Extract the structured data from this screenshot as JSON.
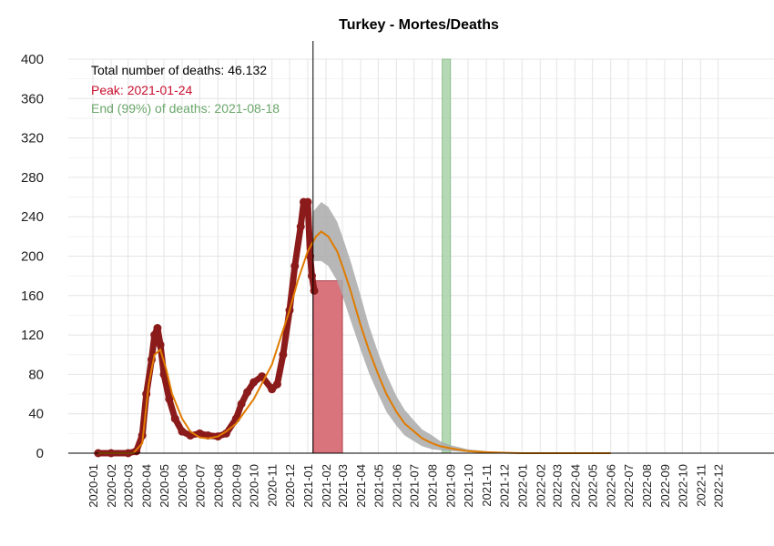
{
  "chart_data": {
    "type": "line",
    "title": "Turkey - Mortes/Deaths",
    "xlabel": "",
    "ylabel": "",
    "x_range": [
      "2020-01-01",
      "2022-12-31"
    ],
    "ylim": [
      0,
      400
    ],
    "y_ticks": [
      0,
      40,
      80,
      120,
      160,
      200,
      240,
      280,
      320,
      360,
      400
    ],
    "x_tick_labels": [
      "2020-01",
      "2020-02",
      "2020-03",
      "2020-04",
      "2020-05",
      "2020-06",
      "2020-07",
      "2020-08",
      "2020-09",
      "2020-10",
      "2020-11",
      "2020-12",
      "2021-01",
      "2021-02",
      "2021-03",
      "2021-04",
      "2021-05",
      "2021-06",
      "2021-07",
      "2021-08",
      "2021-09",
      "2021-10",
      "2021-11",
      "2021-12",
      "2022-01",
      "2022-02",
      "2022-03",
      "2022-04",
      "2022-05",
      "2022-06",
      "2022-07",
      "2022-08",
      "2022-09",
      "2022-10",
      "2022-11",
      "2022-12"
    ],
    "grid": true,
    "annotations": {
      "total": "Total number of deaths: 46.132",
      "peak": "Peak: 2021-01-24",
      "end": "End (99%) of deaths: 2021-08-18"
    },
    "colors": {
      "observed": "#8b1a1a",
      "fit": "#e07b00",
      "band": "#aaaaaa",
      "peak_bar": "#d9737c",
      "end_bar": "#a9d3a9",
      "peak_text": "#c8102e",
      "end_text": "#6aa66a"
    },
    "vertical_line_date": "2021-01-10",
    "peak_window": [
      "2021-01-10",
      "2021-03-01"
    ],
    "peak_bar_height": 175,
    "end_window": [
      "2021-08-18",
      "2021-09-01"
    ],
    "observed": {
      "x": [
        "2020-01-10",
        "2020-02-01",
        "2020-03-01",
        "2020-03-15",
        "2020-03-25",
        "2020-04-01",
        "2020-04-10",
        "2020-04-15",
        "2020-04-20",
        "2020-04-25",
        "2020-05-01",
        "2020-05-10",
        "2020-05-20",
        "2020-06-01",
        "2020-06-15",
        "2020-07-01",
        "2020-07-15",
        "2020-08-01",
        "2020-08-15",
        "2020-09-01",
        "2020-09-10",
        "2020-09-20",
        "2020-10-01",
        "2020-10-15",
        "2020-11-01",
        "2020-11-10",
        "2020-11-20",
        "2020-12-01",
        "2020-12-10",
        "2020-12-20",
        "2020-12-25",
        "2021-01-01",
        "2021-01-05",
        "2021-01-08",
        "2021-01-12"
      ],
      "y": [
        0,
        0,
        0,
        2,
        18,
        60,
        95,
        120,
        127,
        110,
        80,
        55,
        35,
        22,
        18,
        20,
        18,
        17,
        20,
        35,
        50,
        62,
        72,
        78,
        65,
        70,
        100,
        145,
        190,
        230,
        255,
        255,
        200,
        180,
        165
      ]
    },
    "fit": {
      "x": [
        "2020-01-10",
        "2020-03-10",
        "2020-03-25",
        "2020-04-05",
        "2020-04-15",
        "2020-04-25",
        "2020-05-05",
        "2020-05-15",
        "2020-06-01",
        "2020-06-15",
        "2020-07-01",
        "2020-07-15",
        "2020-08-01",
        "2020-08-15",
        "2020-09-01",
        "2020-10-01",
        "2020-11-01",
        "2020-12-01",
        "2020-12-15",
        "2021-01-01",
        "2021-01-15",
        "2021-01-24",
        "2021-02-05",
        "2021-02-20",
        "2021-03-01",
        "2021-03-15",
        "2021-04-01",
        "2021-04-15",
        "2021-05-01",
        "2021-05-15",
        "2021-06-01",
        "2021-06-15",
        "2021-07-01",
        "2021-07-15",
        "2021-08-01",
        "2021-08-15",
        "2021-09-01",
        "2021-10-01",
        "2021-11-01",
        "2021-12-01",
        "2022-01-01",
        "2022-03-01",
        "2022-06-01"
      ],
      "y": [
        0,
        0,
        10,
        70,
        100,
        105,
        85,
        60,
        35,
        22,
        16,
        15,
        17,
        22,
        30,
        55,
        90,
        145,
        175,
        205,
        220,
        225,
        220,
        205,
        190,
        165,
        130,
        105,
        80,
        60,
        42,
        30,
        22,
        15,
        10,
        7,
        5,
        2,
        1,
        0.5,
        0,
        0,
        0
      ]
    },
    "band_upper": {
      "x": [
        "2021-01-10",
        "2021-01-24",
        "2021-02-05",
        "2021-02-20",
        "2021-03-01",
        "2021-03-15",
        "2021-04-01",
        "2021-04-15",
        "2021-05-01",
        "2021-05-15",
        "2021-06-01",
        "2021-06-15",
        "2021-07-01",
        "2021-07-15",
        "2021-08-01",
        "2021-08-15",
        "2021-09-01",
        "2021-10-01",
        "2021-11-01",
        "2021-12-01"
      ],
      "y": [
        245,
        255,
        250,
        235,
        220,
        195,
        160,
        130,
        102,
        80,
        58,
        44,
        33,
        24,
        18,
        12,
        8,
        4,
        2,
        1
      ]
    },
    "band_lower": {
      "x": [
        "2021-01-10",
        "2021-01-24",
        "2021-02-05",
        "2021-02-20",
        "2021-03-01",
        "2021-03-15",
        "2021-04-01",
        "2021-04-15",
        "2021-05-01",
        "2021-05-15",
        "2021-06-01",
        "2021-06-15",
        "2021-07-01",
        "2021-07-15",
        "2021-08-01",
        "2021-08-15",
        "2021-09-01",
        "2021-10-01",
        "2021-11-01",
        "2021-12-01"
      ],
      "y": [
        195,
        195,
        190,
        175,
        160,
        135,
        105,
        82,
        60,
        42,
        28,
        18,
        12,
        7,
        4,
        3,
        2,
        1,
        0.5,
        0
      ]
    }
  }
}
